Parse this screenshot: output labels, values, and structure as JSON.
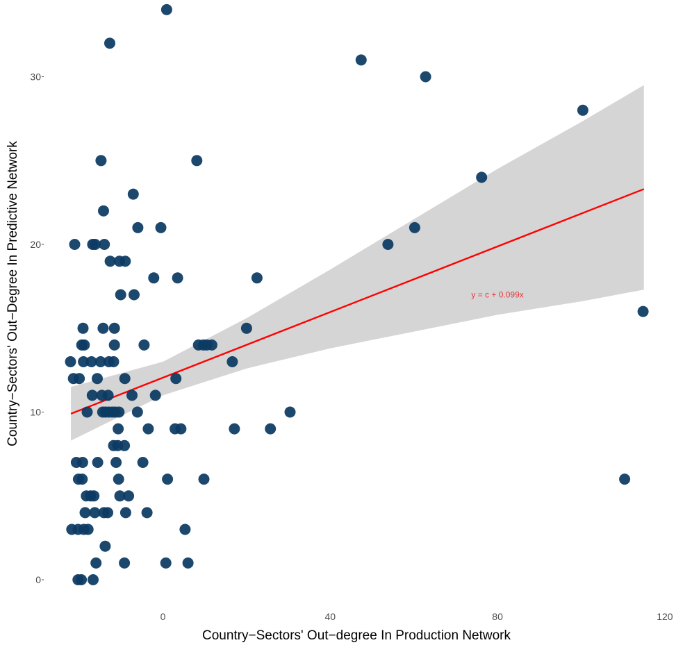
{
  "chart_data": {
    "type": "scatter",
    "title": "",
    "xlabel": "Country−Sectors' Out−degree In Production Network",
    "ylabel": "Country−Sectors' Out−Degree In Predictive Network",
    "xlim": [
      -25,
      120
    ],
    "ylim": [
      -1.2,
      34.5
    ],
    "x_ticks": [
      0,
      40,
      80,
      120
    ],
    "y_ticks": [
      0,
      10,
      20,
      30
    ],
    "grid": false,
    "legend": "none",
    "colors": {
      "points": "#0c3a63",
      "fit_line": "#ff0000",
      "confidence_band": "#d3d3d3",
      "annotation": "#e8383d",
      "axis_text": "#4d4d4d"
    },
    "annotation": {
      "text": "y = c + 0.099x",
      "x": 80,
      "y": 17
    },
    "fit": {
      "x_start": -22,
      "y_start": 9.9,
      "x_end": 115,
      "y_end": 23.3
    },
    "band": {
      "upper": [
        [
          -22,
          11.5
        ],
        [
          0,
          13
        ],
        [
          20,
          15.6
        ],
        [
          40,
          18.5
        ],
        [
          60,
          21.5
        ],
        [
          80,
          24.5
        ],
        [
          100,
          27.3
        ],
        [
          115,
          29.5
        ]
      ],
      "lower": [
        [
          -22,
          8.3
        ],
        [
          0,
          11.0
        ],
        [
          20,
          12.6
        ],
        [
          40,
          13.8
        ],
        [
          60,
          14.8
        ],
        [
          80,
          15.8
        ],
        [
          100,
          16.6
        ],
        [
          115,
          17.3
        ]
      ]
    },
    "series": [
      {
        "x": [
          0.9,
          -12.7,
          47.4,
          62.8,
          100.4,
          8.1,
          -14.8,
          76.2,
          -7.1,
          -14.2,
          -6.0,
          -0.5,
          -21.1,
          -16.8,
          -16.2,
          -14.0,
          -12.6,
          -10.4,
          -9.0,
          53.8,
          60.2,
          -2.2,
          3.5,
          22.5,
          -10.1,
          -6.9,
          114.8,
          -19.1,
          -14.3,
          -11.6,
          20.0,
          -19.4,
          -18.8,
          -11.6,
          -4.5,
          8.5,
          9.7,
          10.5,
          11.7,
          -22.1,
          -19.0,
          -17.1,
          -14.9,
          -12.9,
          -11.8,
          16.6,
          -21.4,
          -20.0,
          -15.7,
          -9.1,
          3.1,
          -16.9,
          -14.6,
          -13.1,
          -7.4,
          -1.8,
          -18.1,
          -14.4,
          -13.7,
          -12.9,
          -12.1,
          -11.4,
          -10.5,
          -6.1,
          30.4,
          -10.7,
          -3.5,
          2.9,
          4.3,
          17.1,
          25.7,
          -11.8,
          -10.8,
          -9.2,
          -20.7,
          -19.2,
          -15.6,
          -11.2,
          -4.8,
          -20.2,
          -19.3,
          -10.6,
          1.1,
          9.8,
          110.4,
          -18.3,
          -17.3,
          -16.5,
          -10.3,
          -8.2,
          -18.6,
          -16.3,
          -14.1,
          -13.2,
          -8.9,
          -3.8,
          -21.8,
          -20.3,
          -18.9,
          -17.9,
          5.3,
          -13.8,
          -16.0,
          -9.2,
          0.7,
          6.0,
          -20.3,
          -19.5,
          -16.7
        ],
        "y": [
          34,
          32,
          31,
          30,
          28,
          25,
          25,
          24,
          23,
          22,
          21,
          21,
          20,
          20,
          20,
          20,
          19,
          19,
          19,
          20,
          21,
          18,
          18,
          18,
          17,
          17,
          16,
          15,
          15,
          15,
          15,
          14,
          14,
          14,
          14,
          14,
          14,
          14,
          14,
          13,
          13,
          13,
          13,
          13,
          13,
          13,
          12,
          12,
          12,
          12,
          12,
          11,
          11,
          11,
          11,
          11,
          10,
          10,
          10,
          10,
          10,
          10,
          10,
          10,
          10,
          9,
          9,
          9,
          9,
          9,
          9,
          8,
          8,
          8,
          7,
          7,
          7,
          7,
          7,
          6,
          6,
          6,
          6,
          6,
          6,
          5,
          5,
          5,
          5,
          5,
          4,
          4,
          4,
          4,
          4,
          4,
          3,
          3,
          3,
          3,
          3,
          2,
          1,
          1,
          1,
          1,
          0,
          0,
          0
        ]
      }
    ]
  }
}
